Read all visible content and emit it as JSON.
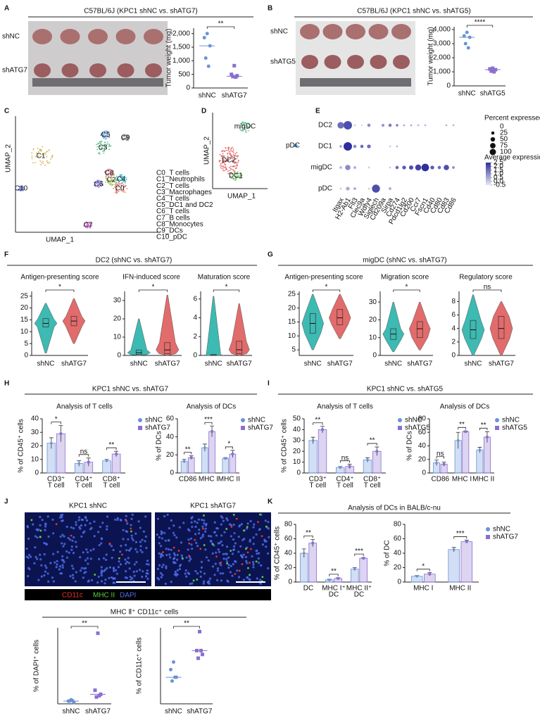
{
  "panel_labels": [
    "A",
    "B",
    "C",
    "D",
    "E",
    "F",
    "G",
    "H",
    "I",
    "J",
    "K"
  ],
  "photos": [
    {
      "rows": [
        "shNC",
        "shATG7"
      ]
    },
    {
      "rows": [
        "shNC",
        "shATG5"
      ]
    }
  ],
  "umap_c": {
    "xlabel": "UMAP_1",
    "ylabel": "UMAP_2",
    "clusters": [
      {
        "tag": "C0",
        "name": "C0_T cells"
      },
      {
        "tag": "C1",
        "name": "C1_Neutrophils"
      },
      {
        "tag": "C2",
        "name": "C2_T cells"
      },
      {
        "tag": "C3",
        "name": "C3_Macrophages"
      },
      {
        "tag": "C4",
        "name": "C4_T cells"
      },
      {
        "tag": "C5",
        "name": "C5_DC1 and DC2"
      },
      {
        "tag": "C6",
        "name": "C6_T cells"
      },
      {
        "tag": "C7",
        "name": "C7_B cells"
      },
      {
        "tag": "C8",
        "name": "C8_Monocytes"
      },
      {
        "tag": "C9",
        "name": "C9_DCs"
      },
      {
        "tag": "C10",
        "name": "C10_pDC"
      }
    ]
  },
  "umap_d": {
    "xlabel": "UMAP_1",
    "ylabel": "UMAP_2",
    "labels": [
      "migDC",
      "DC2",
      "DC1",
      "pDC"
    ]
  },
  "groups": [
    {
      "title": "DC2 (shNC vs. shATG7)"
    },
    {
      "title": "migDC (shNC vs. shATG7)"
    },
    {
      "title": "KPC1 shNC vs. shATG7"
    },
    {
      "title": "KPC1 shNC vs. shATG5"
    },
    {
      "title": "MHC Ⅱ⁺ CD11c⁺ cells"
    },
    {
      "title": "Analysis of DCs in BALB/c-nu"
    }
  ],
  "micrographs": {
    "titles": [
      "KPC1 shNC",
      "KPC1 shATG7"
    ],
    "channels": [
      {
        "name": "CD11c",
        "color": "#e8302a"
      },
      {
        "name": "MHC II",
        "color": "#5ccf3c"
      },
      {
        "name": "DAPI",
        "color": "#4f6ff0"
      }
    ]
  },
  "chart_data": [
    {
      "type": "strip",
      "title": "C57BL/6J (KPC1 shNC vs. shATG7)",
      "ylabel": "Tumor weight (mg)",
      "categories": [
        "shNC",
        "shATG7"
      ],
      "colors": [
        "#6b93d6",
        "#8a6fd0"
      ],
      "values": [
        [
          2000,
          1850,
          1550,
          1100,
          800
        ],
        [
          820,
          500,
          450,
          420,
          400
        ]
      ],
      "centers": [
        1550,
        430
      ],
      "significance": "**",
      "ylim": [
        0,
        2200
      ],
      "yticks": [
        0,
        500,
        {
          "value": 1000,
          "label": "1,000"
        },
        {
          "value": 1500,
          "label": "1,500"
        },
        {
          "value": 2000,
          "label": "2,000"
        }
      ]
    },
    {
      "type": "strip",
      "title": "C57BL/6J (KPC1 shNC vs. shATG5)",
      "ylabel": "Tumor weight (mg)",
      "categories": [
        "shNC",
        "shATG5"
      ],
      "colors": [
        "#6b93d6",
        "#8a6fd0"
      ],
      "values": [
        [
          3800,
          3550,
          3450,
          3000,
          2700
        ],
        [
          1250,
          1200,
          1150,
          1050,
          1000
        ]
      ],
      "centers": [
        3450,
        1150
      ],
      "significance": "****",
      "ylim": [
        0,
        4200
      ],
      "yticks": [
        0,
        {
          "value": 1000,
          "label": "1,000"
        },
        {
          "value": 2000,
          "label": "2,000"
        },
        {
          "value": 3000,
          "label": "3,000"
        },
        {
          "value": 4000,
          "label": "4,000"
        }
      ]
    },
    {
      "type": "violin",
      "title": "Antigen-presenting score",
      "categories": [
        "shNC",
        "shATG7"
      ],
      "colors": [
        "#3dbab2",
        "#e26b6b"
      ],
      "min": [
        1,
        5
      ],
      "q1": [
        12,
        12.5
      ],
      "medians": [
        13.5,
        14.5
      ],
      "q3": [
        15.5,
        16.5
      ],
      "max": [
        22,
        24
      ],
      "significance": "*",
      "ylim": [
        0,
        27
      ],
      "yticks": [
        0,
        5,
        10,
        15,
        20,
        25
      ]
    },
    {
      "type": "violin",
      "title": "IFN-induced score",
      "categories": [
        "shNC",
        "shATG7"
      ],
      "colors": [
        "#3dbab2",
        "#e26b6b"
      ],
      "min": [
        0,
        0
      ],
      "q1": [
        0.5,
        1
      ],
      "medians": [
        1.5,
        3
      ],
      "q3": [
        3,
        7
      ],
      "max": [
        20,
        33
      ],
      "significance": "*",
      "ylim": [
        0,
        35
      ],
      "yticks": [
        0,
        10,
        20,
        30
      ]
    },
    {
      "type": "violin",
      "title": "Maturation score",
      "categories": [
        "shNC",
        "shATG7"
      ],
      "colors": [
        "#3dbab2",
        "#e26b6b"
      ],
      "min": [
        0,
        0
      ],
      "q1": [
        0,
        0.2
      ],
      "medians": [
        0,
        0.6
      ],
      "q3": [
        0.1,
        1.5
      ],
      "max": [
        6.3,
        5.5
      ],
      "significance": "*",
      "ylim": [
        0,
        6.8
      ],
      "yticks": [
        0,
        2,
        4,
        6
      ]
    },
    {
      "type": "violin",
      "title": "Antigen-presenting score",
      "categories": [
        "shNC",
        "shATG7"
      ],
      "colors": [
        "#3dbab2",
        "#e26b6b"
      ],
      "min": [
        5,
        9
      ],
      "q1": [
        11,
        14
      ],
      "medians": [
        14.5,
        16.5
      ],
      "q3": [
        18,
        19.5
      ],
      "max": [
        25,
        25
      ],
      "significance": "*",
      "ylim": [
        3,
        26
      ],
      "yticks": [
        5,
        10,
        15,
        20,
        25
      ]
    },
    {
      "type": "violin",
      "title": "Migration score",
      "categories": [
        "shNC",
        "shATG7"
      ],
      "colors": [
        "#3dbab2",
        "#e26b6b"
      ],
      "min": [
        2,
        3
      ],
      "q1": [
        9,
        10
      ],
      "medians": [
        12,
        15
      ],
      "q3": [
        15,
        19
      ],
      "max": [
        30,
        30
      ],
      "significance": "*",
      "ylim": [
        0,
        36
      ],
      "yticks": [
        0,
        10,
        20,
        30
      ]
    },
    {
      "type": "violin",
      "title": "Regulatory score",
      "categories": [
        "shNC",
        "shATG7"
      ],
      "colors": [
        "#3dbab2",
        "#e26b6b"
      ],
      "min": [
        0,
        0
      ],
      "q1": [
        2.5,
        2.5
      ],
      "medians": [
        3.8,
        4
      ],
      "q3": [
        5.2,
        5.8
      ],
      "max": [
        9,
        8
      ],
      "significance": "ns",
      "ylim": [
        0,
        9.5
      ],
      "yticks": [
        0,
        2,
        4,
        6,
        8
      ]
    },
    {
      "type": "bar",
      "title": "Analysis of T cells",
      "ylabel": "% of CD45⁺ cells",
      "categories": [
        [
          "CD3⁺",
          "T cell"
        ],
        [
          "CD4⁺",
          "T cell"
        ],
        [
          "CD8⁺",
          "T cell"
        ]
      ],
      "series": [
        {
          "name": "shNC",
          "color": "#6b93d6",
          "values": [
            22,
            7,
            9
          ],
          "errors": [
            4,
            2,
            1
          ]
        },
        {
          "name": "shATG7",
          "color": "#8a6fd0",
          "values": [
            29,
            8,
            14
          ],
          "errors": [
            6,
            3,
            2
          ]
        }
      ],
      "significance": [
        "*",
        "ns",
        "**"
      ],
      "ylim": [
        0,
        40
      ],
      "yticks": [
        0,
        10,
        20,
        30,
        40
      ],
      "legend": true
    },
    {
      "type": "bar",
      "title": "Analysis of DCs",
      "ylabel": "% of DCs",
      "categories": [
        [
          "CD86"
        ],
        [
          "MHC I"
        ],
        [
          "MHC II"
        ]
      ],
      "series": [
        {
          "name": "shNC",
          "color": "#6b93d6",
          "values": [
            13,
            28,
            16
          ],
          "errors": [
            2,
            4,
            1
          ]
        },
        {
          "name": "shATG7",
          "color": "#8a6fd0",
          "values": [
            17,
            46,
            21
          ],
          "errors": [
            2,
            6,
            4
          ]
        }
      ],
      "significance": [
        "**",
        "***",
        "*"
      ],
      "ylim": [
        0,
        60
      ],
      "yticks": [
        0,
        20,
        40,
        60
      ],
      "legend": true
    },
    {
      "type": "bar",
      "title": "Analysis of T cells",
      "ylabel": "% of CD45⁺ cells",
      "categories": [
        [
          "CD3⁺",
          "T cell"
        ],
        [
          "CD4⁺",
          "T cell"
        ],
        [
          "CD8⁺",
          "T cell"
        ]
      ],
      "series": [
        {
          "name": "shNC",
          "color": "#6b93d6",
          "values": [
            30,
            5,
            12
          ],
          "errors": [
            3,
            1,
            2
          ]
        },
        {
          "name": "shATG5",
          "color": "#8a6fd0",
          "values": [
            40,
            6,
            20
          ],
          "errors": [
            3,
            2,
            4
          ]
        }
      ],
      "significance": [
        "**",
        "ns",
        "**"
      ],
      "ylim": [
        0,
        50
      ],
      "yticks": [
        0,
        10,
        20,
        30,
        40,
        50
      ],
      "legend": true
    },
    {
      "type": "bar",
      "title": "Analysis of DCs",
      "ylabel": "% of DCs",
      "categories": [
        [
          "CD86"
        ],
        [
          "MHC I"
        ],
        [
          "MHC II"
        ]
      ],
      "series": [
        {
          "name": "shNC",
          "color": "#6b93d6",
          "values": [
            15,
            48,
            34
          ],
          "errors": [
            4,
            12,
            4
          ]
        },
        {
          "name": "shATG5",
          "color": "#8a6fd0",
          "values": [
            13,
            61,
            53
          ],
          "errors": [
            3,
            1,
            8
          ]
        }
      ],
      "significance": [
        "ns",
        "**",
        "**"
      ],
      "ylim": [
        0,
        80
      ],
      "yticks": [
        0,
        20,
        40,
        60,
        80
      ],
      "legend": true
    },
    {
      "type": "strip",
      "ylabel": "% of DAPI⁺ cells",
      "categories": [
        "shNC",
        "shATG7"
      ],
      "colors": [
        "#6b93d6",
        "#8a6fd0"
      ],
      "values": [
        [
          0.15,
          0.1,
          0.05,
          0.1,
          0.12
        ],
        [
          2.6,
          0.5,
          0.35,
          0.25,
          0.3
        ]
      ],
      "centers": [
        0.1,
        0.35
      ],
      "significance": "**",
      "ylim": [
        0,
        2.8
      ]
    },
    {
      "type": "strip",
      "ylabel": "% of CD11c⁺ cells",
      "categories": [
        "shNC",
        "shATG7"
      ],
      "colors": [
        "#6b93d6",
        "#8a6fd0"
      ],
      "values": [
        [
          5.5,
          4.5,
          3.5,
          3,
          3.5
        ],
        [
          9.5,
          7,
          6.5,
          6,
          7
        ]
      ],
      "centers": [
        3.5,
        7
      ],
      "significance": "**",
      "ylim": [
        0,
        10
      ]
    },
    {
      "type": "bar",
      "ylabel": "% of CD45⁺ cells",
      "categories": [
        [
          "DC"
        ],
        [
          "MHC I⁺",
          "DC"
        ],
        [
          "MHC II⁺",
          "DC"
        ]
      ],
      "series": [
        {
          "name": "shNC",
          "color": "#6b93d6",
          "values": [
            40,
            3,
            18
          ],
          "errors": [
            6,
            1,
            2
          ]
        },
        {
          "name": "shATG7",
          "color": "#8a6fd0",
          "values": [
            54,
            5,
            33
          ],
          "errors": [
            5,
            1,
            1
          ]
        }
      ],
      "significance": [
        "**",
        "**",
        "***"
      ],
      "ylim": [
        0,
        80
      ],
      "yticks": [
        0,
        20,
        40,
        60,
        80
      ],
      "legend": false
    },
    {
      "type": "bar",
      "ylabel": "% of DC",
      "categories": [
        [
          "MHC I"
        ],
        [
          "MHC II"
        ]
      ],
      "series": [
        {
          "name": "shNC",
          "color": "#6b93d6",
          "values": [
            8,
            45
          ],
          "errors": [
            1,
            3
          ]
        },
        {
          "name": "shATG7",
          "color": "#8a6fd0",
          "values": [
            11,
            56
          ],
          "errors": [
            2,
            2
          ]
        }
      ],
      "significance": [
        "*",
        "***"
      ],
      "ylim": [
        0,
        80
      ],
      "yticks": [
        0,
        20,
        40,
        60,
        80
      ],
      "legend": true
    },
    {
      "type": "dotplot",
      "rows": [
        "DC2",
        "DC1",
        "migDC",
        "pDC"
      ],
      "genes": [
        "Itgax",
        "H2-Ab1",
        "Flt3",
        "Clec9a",
        "Wdfy4",
        "Siglech",
        "Cd209a",
        "Sirpa",
        "Cd274",
        "Pdcd1lg2",
        "Cd200",
        "Ccr7",
        "Fscn1",
        "Cd40",
        "Cd80",
        "Cd83",
        "Cd86"
      ],
      "percent": [
        [
          60,
          100,
          5,
          3,
          15,
          0,
          10,
          15,
          10,
          5,
          5,
          5,
          5,
          0,
          0,
          5,
          5
        ],
        [
          10,
          100,
          15,
          15,
          20,
          0,
          0,
          5,
          5,
          0,
          0,
          0,
          0,
          0,
          0,
          0,
          0
        ],
        [
          10,
          40,
          10,
          0,
          5,
          0,
          0,
          5,
          15,
          20,
          25,
          50,
          80,
          20,
          15,
          40,
          10
        ],
        [
          5,
          20,
          10,
          0,
          5,
          90,
          0,
          10,
          0,
          0,
          0,
          0,
          0,
          0,
          0,
          0,
          0
        ]
      ],
      "expression": [
        [
          1.5,
          2,
          0,
          0,
          1,
          0,
          1,
          1.2,
          1,
          0.5,
          0.5,
          0.3,
          0.3,
          0,
          0,
          0.3,
          0.3
        ],
        [
          0.5,
          2.5,
          1,
          1.5,
          1.5,
          0,
          0,
          0,
          0.3,
          0,
          0,
          0,
          0,
          0,
          0,
          0,
          0
        ],
        [
          0.3,
          1,
          0.5,
          0,
          0,
          0,
          0,
          0,
          1.5,
          1.8,
          2,
          2.2,
          2.5,
          1.8,
          1.5,
          2,
          1
        ],
        [
          0,
          0.5,
          0.5,
          0,
          0,
          2,
          0,
          0.5,
          0,
          0,
          0,
          0,
          0,
          0,
          0,
          0,
          0
        ]
      ],
      "size_title": "Percent expressed",
      "size_ticks": [
        0,
        25,
        50,
        75,
        100
      ],
      "color_title": "Average expression",
      "color_ticks": [
        2.5,
        {
          "value": 2,
          "label": "2.0"
        },
        1.5,
        {
          "value": 1,
          "label": "1.0"
        },
        0.5,
        {
          "value": 0,
          "label": "0.0"
        },
        -0.5
      ],
      "colors": [
        "#e6e6f2",
        "#2f2f9e"
      ]
    }
  ]
}
